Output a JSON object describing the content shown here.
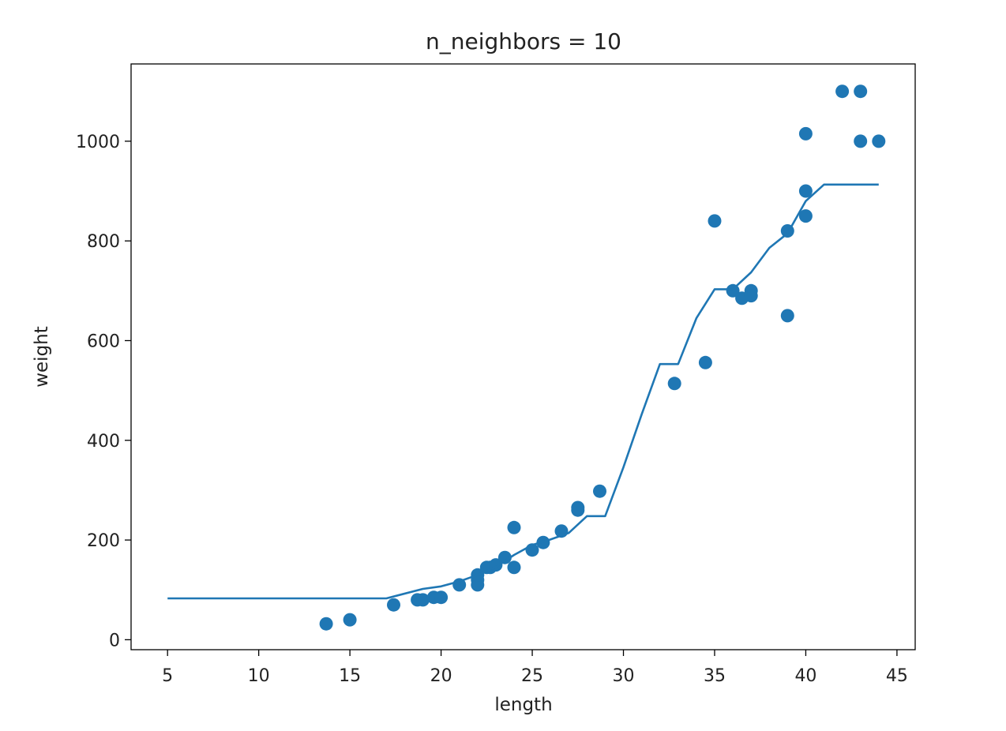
{
  "chart_data": {
    "type": "scatter",
    "title": "n_neighbors = 10",
    "xlabel": "length",
    "ylabel": "weight",
    "xlim": [
      3,
      46
    ],
    "ylim": [
      -20,
      1155
    ],
    "xticks": [
      5,
      10,
      15,
      20,
      25,
      30,
      35,
      40,
      45
    ],
    "yticks": [
      0,
      200,
      400,
      600,
      800,
      1000
    ],
    "grid": false,
    "color": "#1f77b4",
    "series": [
      {
        "type": "scatter",
        "points": [
          [
            13.7,
            32
          ],
          [
            15.0,
            40
          ],
          [
            17.4,
            70
          ],
          [
            18.7,
            80
          ],
          [
            19.0,
            80
          ],
          [
            19.6,
            85
          ],
          [
            20.0,
            85
          ],
          [
            21.0,
            110
          ],
          [
            22.0,
            110
          ],
          [
            22.0,
            120
          ],
          [
            22.0,
            130
          ],
          [
            22.5,
            145
          ],
          [
            22.7,
            145
          ],
          [
            23.0,
            150
          ],
          [
            23.5,
            165
          ],
          [
            24.0,
            145
          ],
          [
            24.0,
            225
          ],
          [
            25.0,
            180
          ],
          [
            25.6,
            195
          ],
          [
            26.6,
            218
          ],
          [
            27.5,
            260
          ],
          [
            27.5,
            265
          ],
          [
            28.7,
            298
          ],
          [
            32.8,
            514
          ],
          [
            34.5,
            556
          ],
          [
            35.0,
            840
          ],
          [
            36.0,
            700
          ],
          [
            36.5,
            685
          ],
          [
            37.0,
            700
          ],
          [
            37.0,
            690
          ],
          [
            39.0,
            820
          ],
          [
            39.0,
            650
          ],
          [
            40.0,
            850
          ],
          [
            40.0,
            900
          ],
          [
            40.0,
            1015
          ],
          [
            42.0,
            1100
          ],
          [
            43.0,
            1100
          ],
          [
            43.0,
            1000
          ],
          [
            44.0,
            1000
          ]
        ]
      },
      {
        "type": "line",
        "points": [
          [
            5,
            83
          ],
          [
            17,
            83
          ],
          [
            19,
            102
          ],
          [
            20,
            107
          ],
          [
            21,
            117
          ],
          [
            22,
            130
          ],
          [
            23,
            146
          ],
          [
            24,
            170
          ],
          [
            25,
            190
          ],
          [
            26,
            201
          ],
          [
            27,
            214
          ],
          [
            28,
            248
          ],
          [
            29,
            248
          ],
          [
            30,
            346
          ],
          [
            31,
            452
          ],
          [
            32,
            553
          ],
          [
            33,
            553
          ],
          [
            34,
            645
          ],
          [
            35,
            703
          ],
          [
            36,
            703
          ],
          [
            37,
            737
          ],
          [
            38,
            786
          ],
          [
            39,
            815
          ],
          [
            40,
            880
          ],
          [
            41,
            913
          ],
          [
            44,
            913
          ]
        ]
      }
    ]
  }
}
